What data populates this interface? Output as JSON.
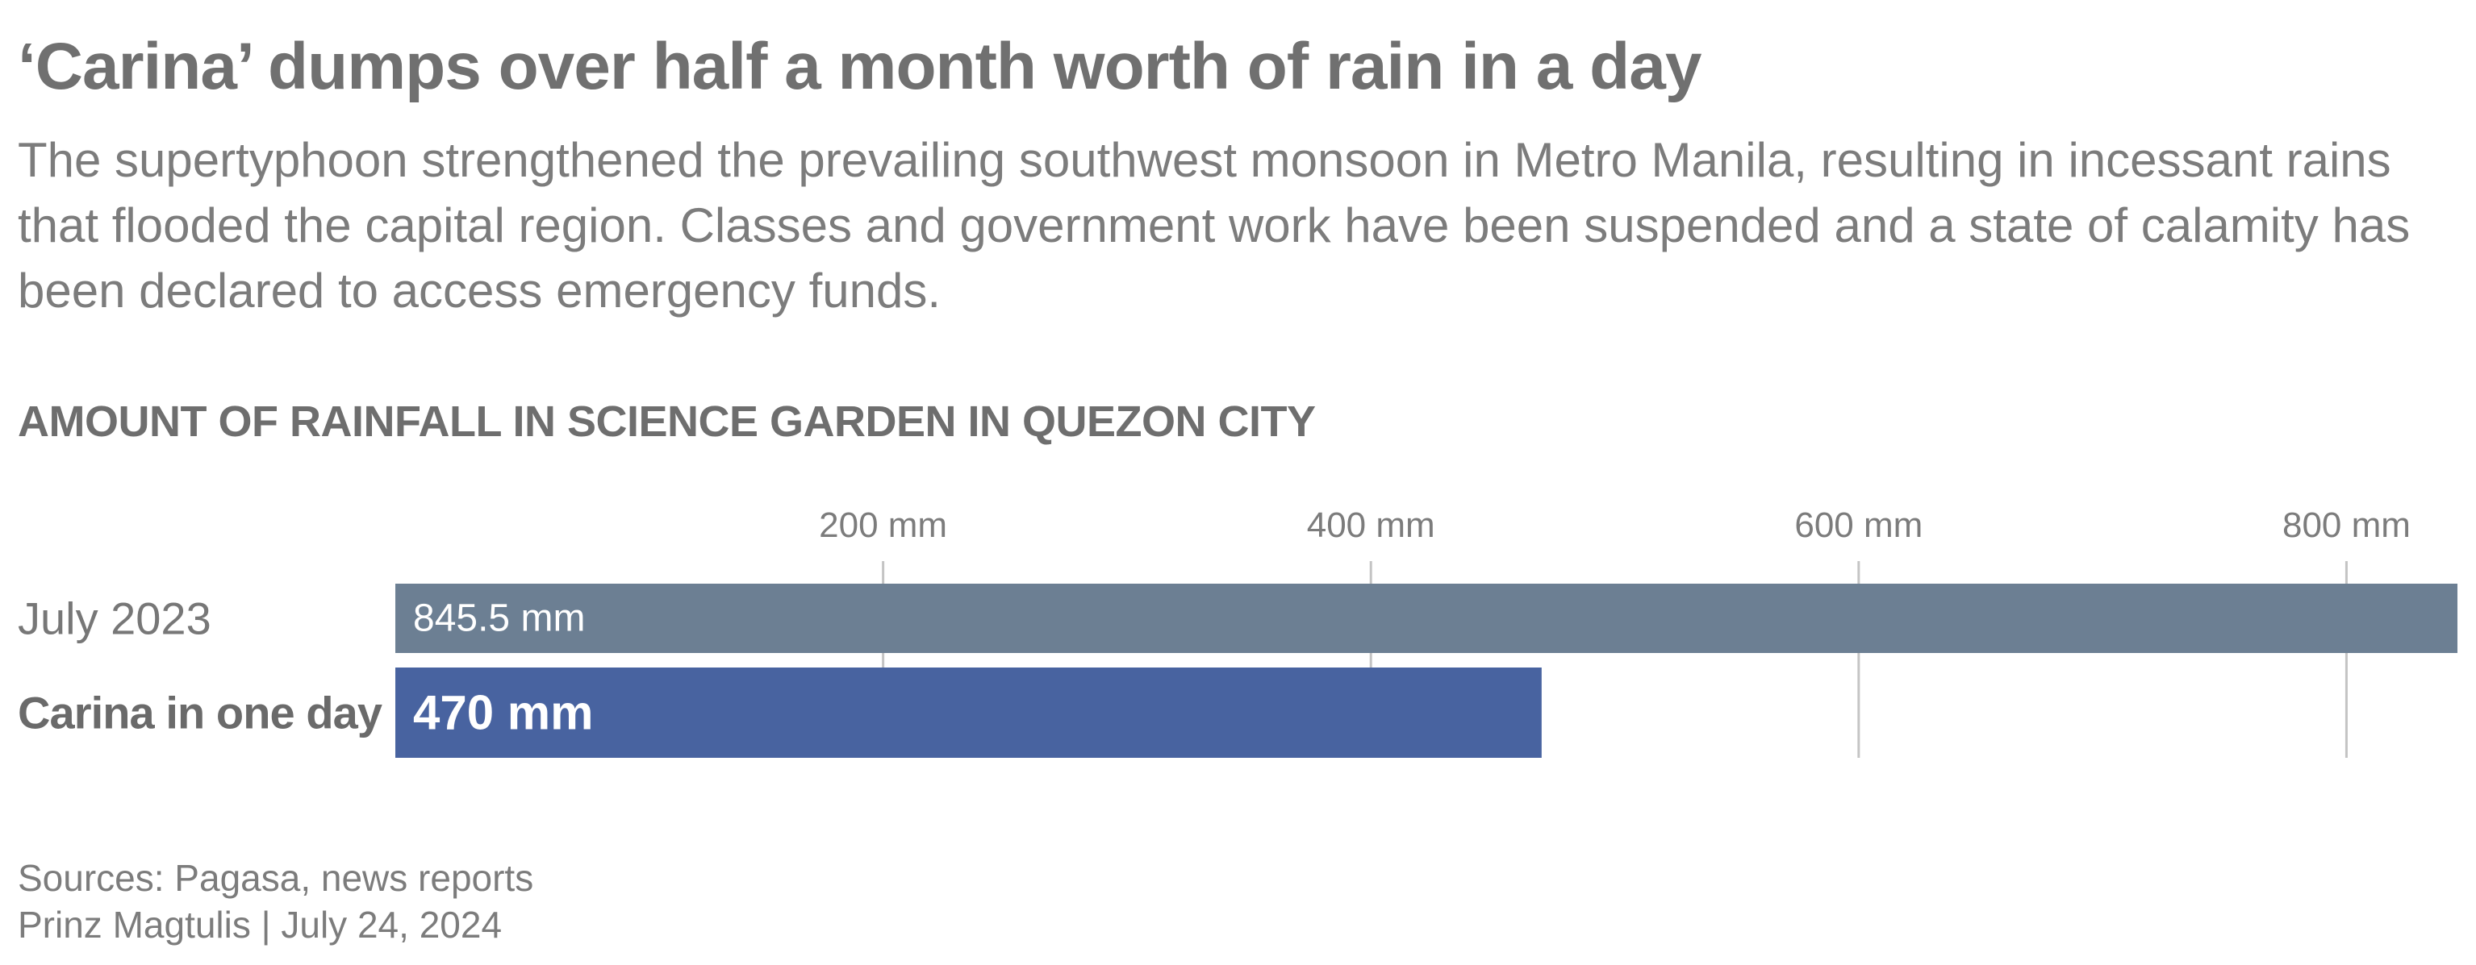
{
  "header": {
    "title": "‘Carina’ dumps over half a month worth of rain in a day",
    "subtitle": "The supertyphoon strengthened the prevailing southwest monsoon in Metro Manila, resulting in incessant rains that flooded the capital region. Classes and government work have been suspended and a state of calamity has been declared to access emergency funds."
  },
  "chart_title": "AMOUNT OF RAINFALL IN SCIENCE GARDEN IN QUEZON CITY",
  "chart_data": {
    "type": "bar",
    "orientation": "horizontal",
    "title": "AMOUNT OF RAINFALL IN SCIENCE GARDEN IN QUEZON CITY",
    "categories": [
      "July 2023",
      "Carina in one day"
    ],
    "values": [
      845.5,
      470
    ],
    "value_labels": [
      "845.5 mm",
      "470 mm"
    ],
    "colors": [
      "#6c7f93",
      "#4863a0"
    ],
    "highlight": [
      false,
      true
    ],
    "xlim": [
      0,
      845.5
    ],
    "x_ticks": [
      200,
      400,
      600,
      800
    ],
    "x_tick_labels": [
      "200 mm",
      "400 mm",
      "600 mm",
      "800 mm"
    ],
    "x_axis_position": "top",
    "grid": true,
    "legend": "none"
  },
  "footer": {
    "sources": "Sources: Pagasa, news reports",
    "byline": "Prinz Magtulis | July 24, 2024"
  }
}
